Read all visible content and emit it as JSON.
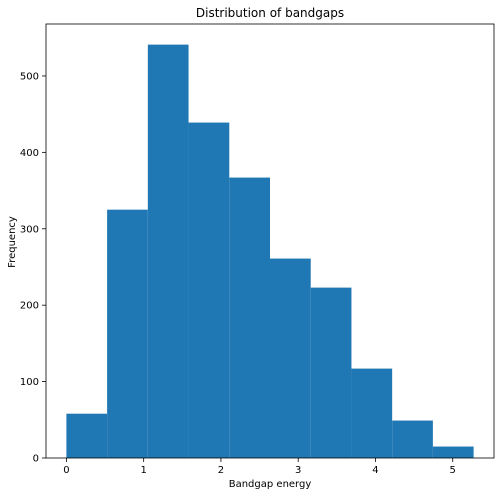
{
  "chart_data": {
    "type": "bar",
    "title": "Distribution of bandgaps",
    "xlabel": "Bandgap energy",
    "ylabel": "Frequency",
    "bin_edges": [
      0.0,
      0.527,
      1.054,
      1.581,
      2.108,
      2.635,
      3.162,
      3.689,
      4.216,
      4.743,
      5.27
    ],
    "values": [
      58,
      325,
      541,
      439,
      367,
      261,
      223,
      117,
      49,
      15
    ],
    "xlim": [
      -0.264,
      5.534
    ],
    "ylim": [
      0,
      568
    ],
    "xticks": [
      0,
      1,
      2,
      3,
      4,
      5
    ],
    "yticks": [
      0,
      100,
      200,
      300,
      400,
      500
    ],
    "xtick_labels": [
      "0",
      "1",
      "2",
      "3",
      "4",
      "5"
    ],
    "ytick_labels": [
      "0",
      "100",
      "200",
      "300",
      "400",
      "500"
    ],
    "grid": false,
    "bar_color": "#1f77b4"
  }
}
